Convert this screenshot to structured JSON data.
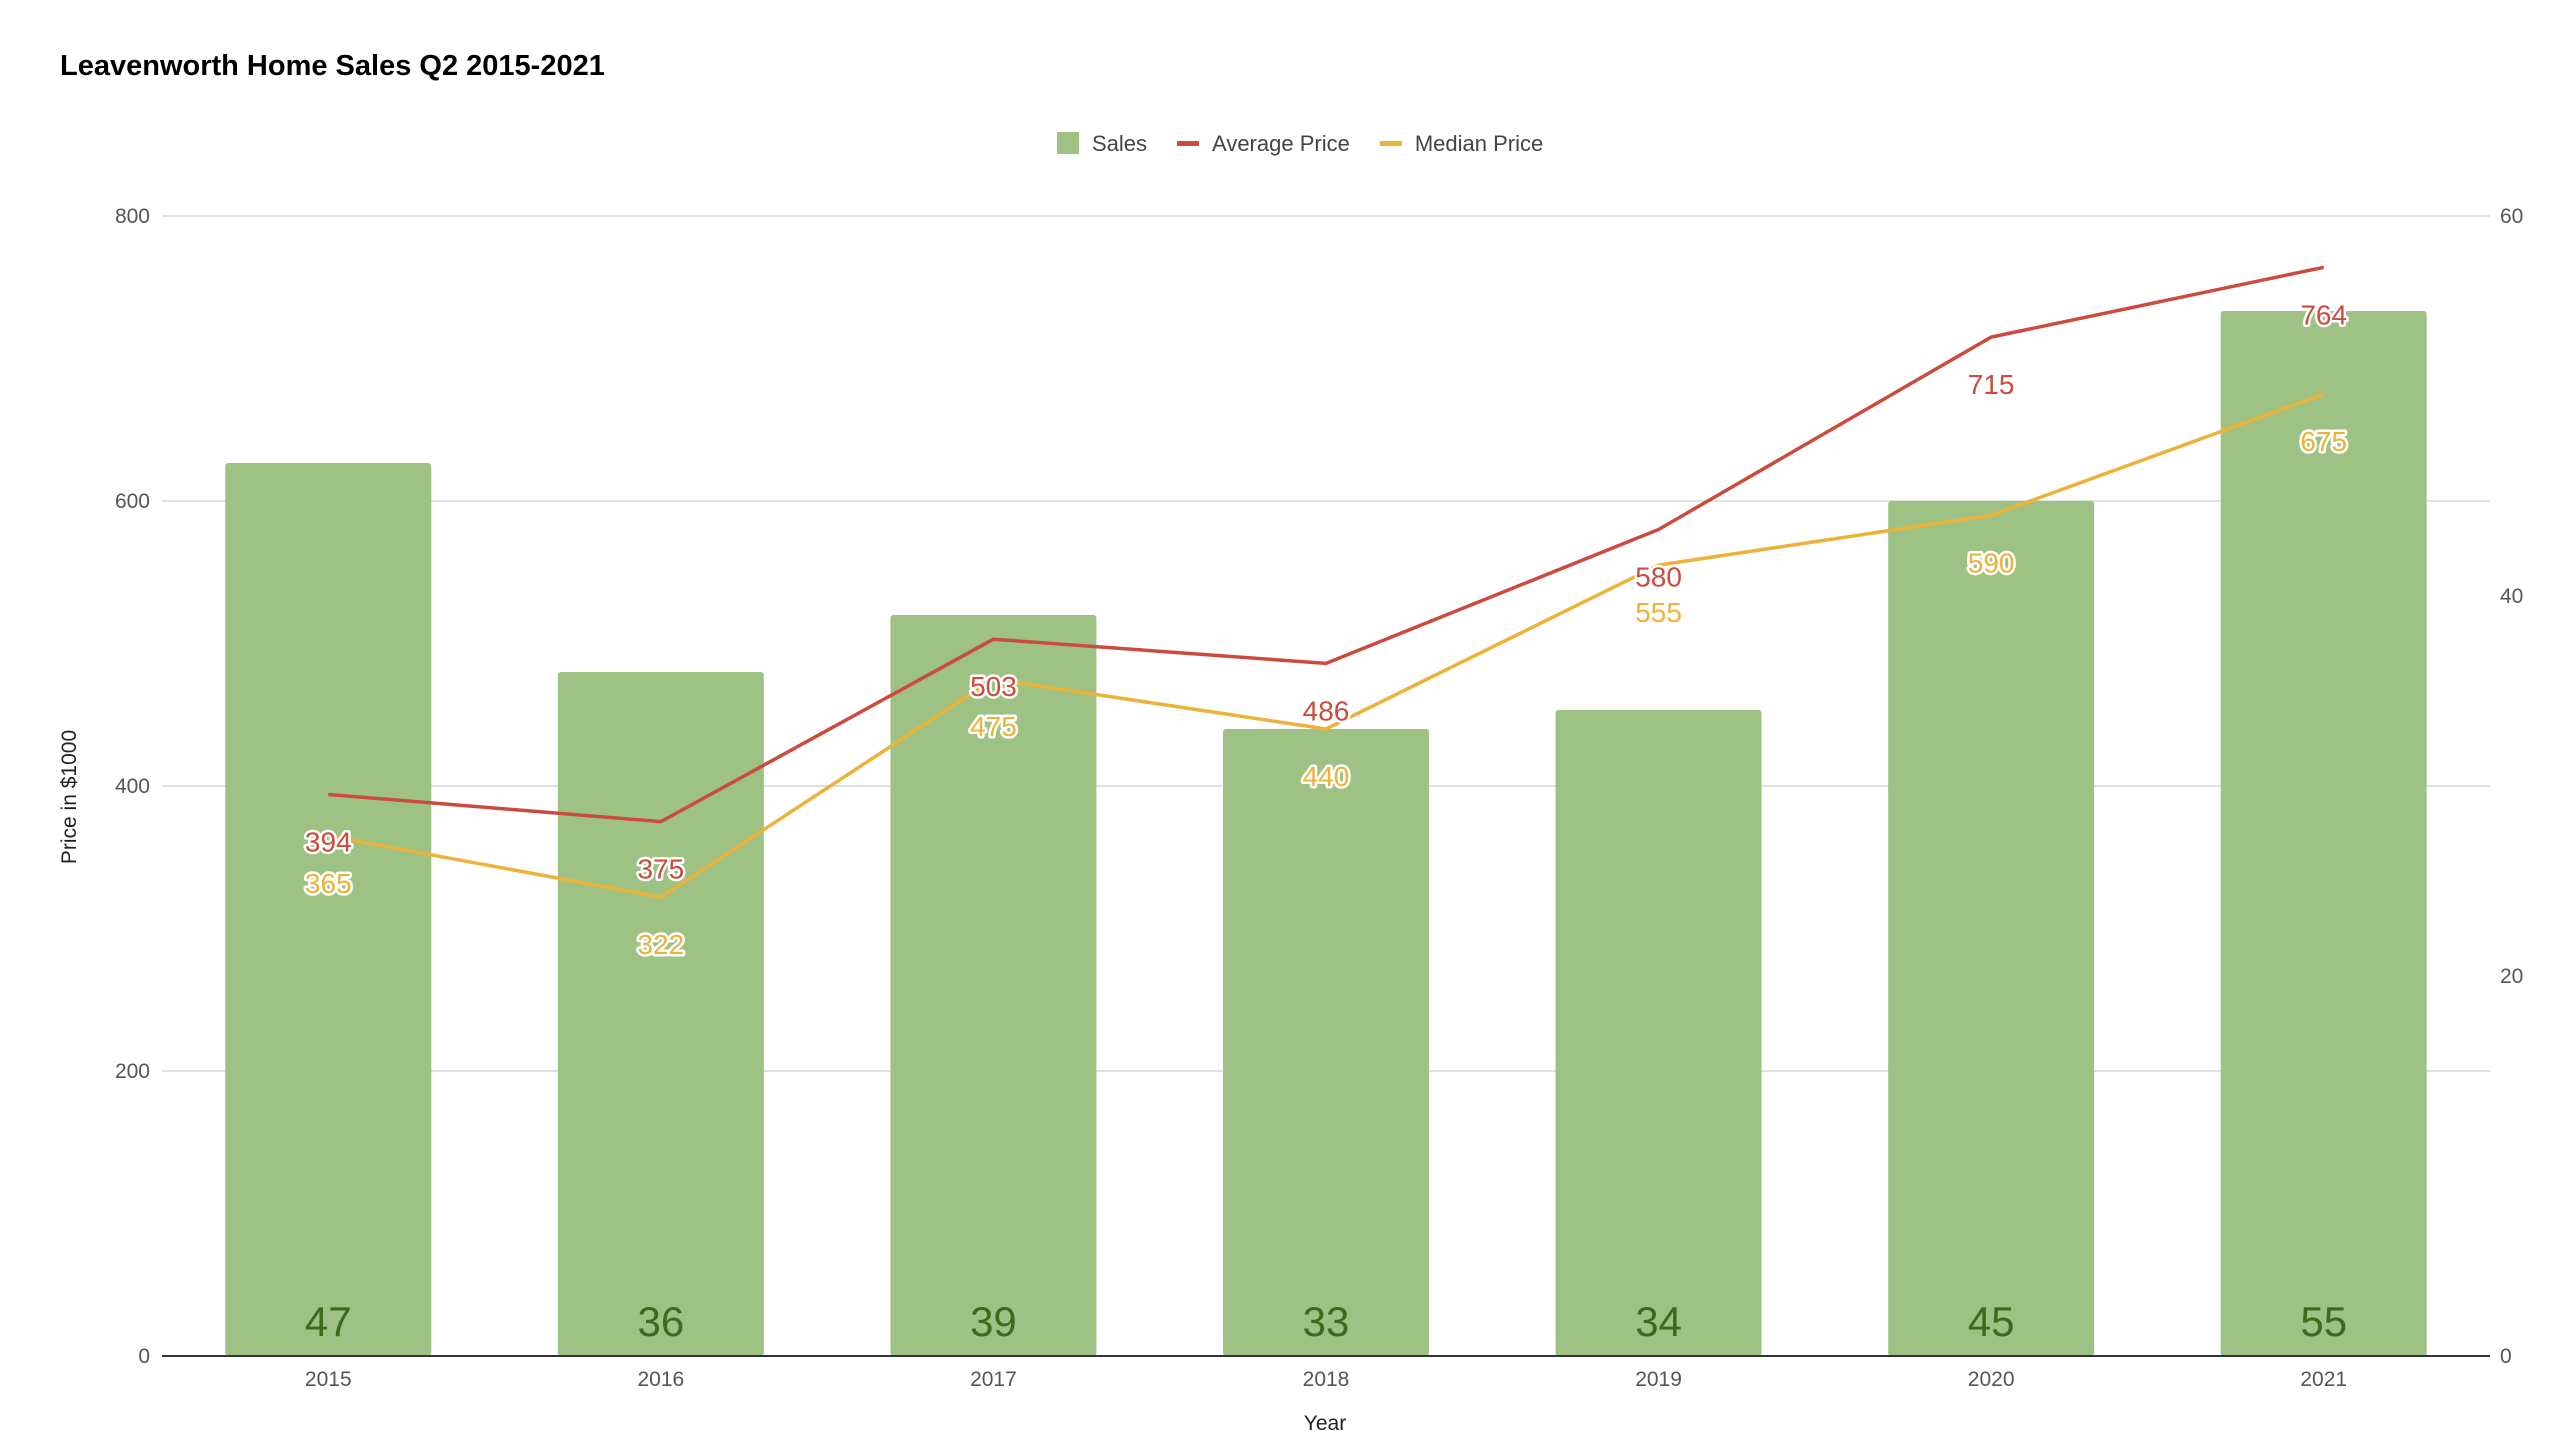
{
  "chart_data": {
    "type": "bar",
    "title": "Leavenworth Home Sales Q2 2015-2021",
    "xlabel": "Year",
    "ylabel": "Price in $1000",
    "categories": [
      "2015",
      "2016",
      "2017",
      "2018",
      "2019",
      "2020",
      "2021"
    ],
    "ylim_left": [
      0,
      800
    ],
    "yticks_left": [
      0,
      200,
      400,
      600,
      800
    ],
    "ylim_right": [
      0,
      60
    ],
    "yticks_right": [
      0,
      20,
      40,
      60
    ],
    "grid": true,
    "legend_position": "top",
    "series": [
      {
        "name": "Sales",
        "type": "bar",
        "axis": "right",
        "color": "#9dc284",
        "label_color": "#3d6b1c",
        "values": [
          47,
          36,
          39,
          33,
          34,
          45,
          55
        ]
      },
      {
        "name": "Average Price",
        "type": "line",
        "axis": "left",
        "color": "#cc4b3c",
        "values": [
          394,
          375,
          503,
          486,
          580,
          715,
          764
        ]
      },
      {
        "name": "Median Price",
        "type": "line",
        "axis": "left",
        "color": "#ecb23a",
        "values": [
          365,
          322,
          475,
          440,
          555,
          590,
          675
        ]
      }
    ]
  }
}
